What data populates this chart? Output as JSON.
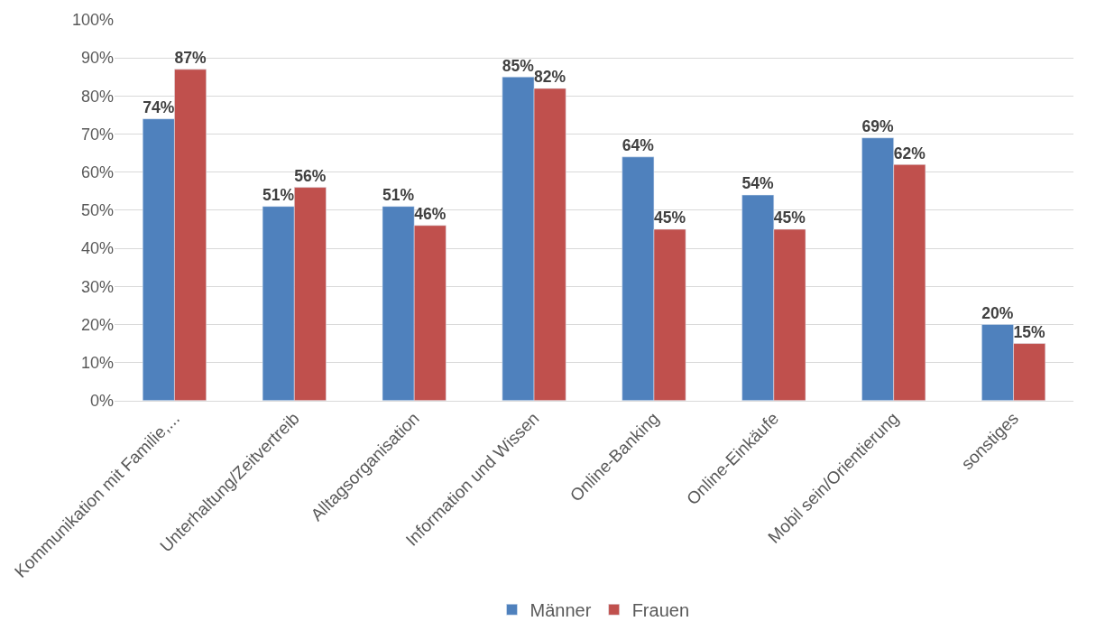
{
  "chart_data": {
    "type": "bar",
    "categories": [
      "Kommunikation mit Familie,...",
      "Unterhaltung/Zeitvertreib",
      "Alltagsorganisation",
      "Information und Wissen",
      "Online-Banking",
      "Online-Einkäufe",
      "Mobil sein/Orientierung",
      "sonstiges"
    ],
    "series": [
      {
        "name": "Männer",
        "color": "#4f81bd",
        "values": [
          74,
          51,
          51,
          85,
          64,
          54,
          69,
          20
        ],
        "value_labels": [
          "74%",
          "51%",
          "51%",
          "85%",
          "64%",
          "54%",
          "69%",
          "20%"
        ]
      },
      {
        "name": "Frauen",
        "color": "#c0504d",
        "values": [
          87,
          56,
          46,
          82,
          45,
          45,
          62,
          15
        ],
        "value_labels": [
          "87%",
          "56%",
          "46%",
          "82%",
          "45%",
          "45%",
          "62%",
          "15%"
        ]
      }
    ],
    "ylim": [
      0,
      100
    ],
    "yticks": [
      {
        "value": 0,
        "label": "0%"
      },
      {
        "value": 10,
        "label": "10%"
      },
      {
        "value": 20,
        "label": "20%"
      },
      {
        "value": 30,
        "label": "30%"
      },
      {
        "value": 40,
        "label": "40%"
      },
      {
        "value": 50,
        "label": "50%"
      },
      {
        "value": 60,
        "label": "60%"
      },
      {
        "value": 70,
        "label": "70%"
      },
      {
        "value": 80,
        "label": "80%"
      },
      {
        "value": 90,
        "label": "90%"
      },
      {
        "value": 100,
        "label": "100%"
      }
    ],
    "grid": "y",
    "legend": "bottom"
  }
}
